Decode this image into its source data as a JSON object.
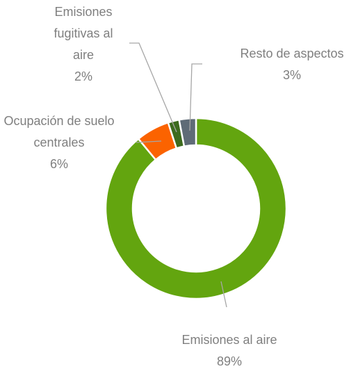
{
  "chart_data": {
    "type": "donut",
    "categories": [
      "Emisiones al aire",
      "Ocupación de suelo centrales",
      "Emisiones fugitivas al aire",
      "Resto de aspectos"
    ],
    "values": [
      89,
      6,
      2,
      3
    ],
    "value_labels": [
      "89%",
      "6%",
      "2%",
      "3%"
    ],
    "colors": [
      "#63a50f",
      "#fb6300",
      "#3d6b1e",
      "#5f6b77"
    ]
  }
}
